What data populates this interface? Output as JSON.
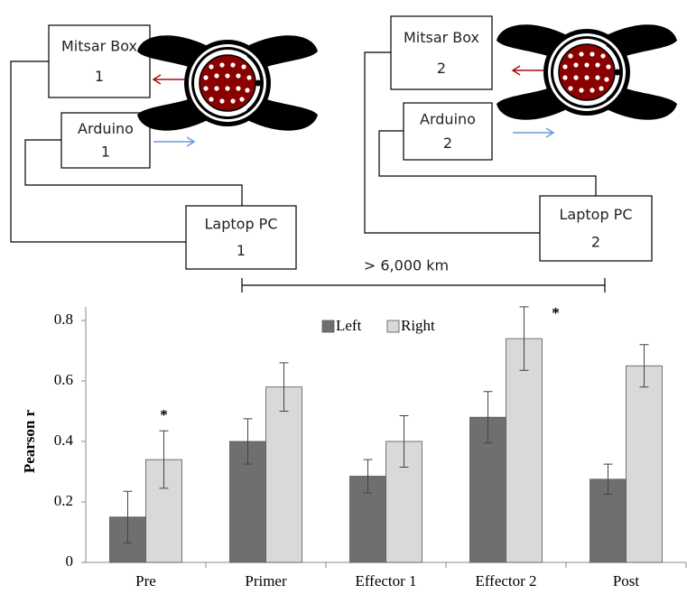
{
  "diagram": {
    "boxes": [
      {
        "name": "Mitsar Box",
        "number": "1"
      },
      {
        "name": "Arduino",
        "number": "1"
      },
      {
        "name": "Laptop PC",
        "number": "1"
      },
      {
        "name": "Mitsar Box",
        "number": "2"
      },
      {
        "name": "Arduino",
        "number": "2"
      },
      {
        "name": "Laptop PC",
        "number": "2"
      }
    ],
    "distance": "> 6,000 km"
  },
  "chart_data": {
    "type": "bar",
    "y_label": "Pearson r",
    "categories": [
      "Pre",
      "Primer",
      "Effector 1",
      "Effector 2",
      "Post"
    ],
    "series": [
      {
        "name": "Left",
        "color": "#6f6f6f",
        "values": [
          0.15,
          0.4,
          0.285,
          0.48,
          0.275
        ],
        "errors": [
          0.085,
          0.075,
          0.055,
          0.085,
          0.05
        ]
      },
      {
        "name": "Right",
        "color": "#d9d9d9",
        "values": [
          0.34,
          0.58,
          0.4,
          0.74,
          0.65
        ],
        "errors": [
          0.095,
          0.08,
          0.085,
          0.105,
          0.07
        ]
      }
    ],
    "annotations": [
      {
        "text": "*",
        "series": 1,
        "index": 0
      },
      {
        "text": "*",
        "series": 1,
        "index": 3
      }
    ],
    "ylim": [
      0,
      0.8
    ],
    "yticks": [
      0,
      0.2,
      0.4,
      0.6,
      0.8
    ],
    "legend": "top"
  }
}
